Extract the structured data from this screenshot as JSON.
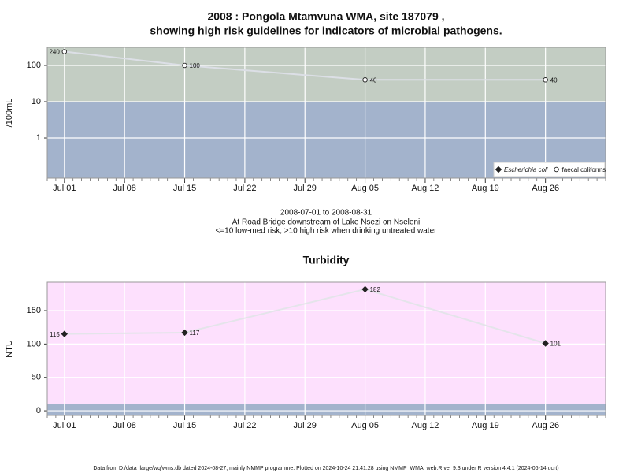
{
  "chart_data": [
    {
      "type": "line",
      "title": [
        "2008 : Pongola Mtamvuna WMA, site 187079 ,",
        "showing high risk guidelines for indicators of microbial pathogens."
      ],
      "y_label": "/100mL",
      "log_scale": true,
      "ylim": [
        0.078,
        316
      ],
      "yticks": [
        1,
        10,
        100
      ],
      "xlim": [
        "2008-06-29",
        "2008-09-02"
      ],
      "xticks": [
        {
          "value": "2008-07-01",
          "label": "Jul 01"
        },
        {
          "value": "2008-07-08",
          "label": "Jul 08"
        },
        {
          "value": "2008-07-15",
          "label": "Jul 15"
        },
        {
          "value": "2008-07-22",
          "label": "Jul 22"
        },
        {
          "value": "2008-07-29",
          "label": "Jul 29"
        },
        {
          "value": "2008-08-05",
          "label": "Aug 05"
        },
        {
          "value": "2008-08-12",
          "label": "Aug 12"
        },
        {
          "value": "2008-08-19",
          "label": "Aug 19"
        },
        {
          "value": "2008-08-26",
          "label": "Aug 26"
        }
      ],
      "x": [
        "2008-07-01",
        "2008-07-15",
        "2008-08-05",
        "2008-08-26"
      ],
      "threshold": 10,
      "color_above": "#c3cdc3",
      "color_below": "#a3b3cc",
      "grid": true,
      "legend": "bottom-right",
      "series": [
        {
          "name": "Escherichia coli",
          "marker": "diamond",
          "color": "#222222",
          "values": [
            null,
            null,
            null,
            null
          ]
        },
        {
          "name": "faecal coliforms",
          "marker": "circle",
          "color": "#dcdfe6",
          "values": [
            240,
            100,
            40,
            40
          ]
        }
      ]
    },
    {
      "type": "line",
      "title": "Turbidity",
      "y_label": "NTU",
      "log_scale": false,
      "ylim": [
        -7,
        192.5
      ],
      "yticks": [
        0,
        50,
        100,
        150
      ],
      "xlim": [
        "2008-06-29",
        "2008-09-02"
      ],
      "xticks": [
        {
          "value": "2008-07-01",
          "label": "Jul 01"
        },
        {
          "value": "2008-07-08",
          "label": "Jul 08"
        },
        {
          "value": "2008-07-15",
          "label": "Jul 15"
        },
        {
          "value": "2008-07-22",
          "label": "Jul 22"
        },
        {
          "value": "2008-07-29",
          "label": "Jul 29"
        },
        {
          "value": "2008-08-05",
          "label": "Aug 05"
        },
        {
          "value": "2008-08-12",
          "label": "Aug 12"
        },
        {
          "value": "2008-08-19",
          "label": "Aug 19"
        },
        {
          "value": "2008-08-26",
          "label": "Aug 26"
        }
      ],
      "x": [
        "2008-07-01",
        "2008-07-15",
        "2008-08-05",
        "2008-08-26"
      ],
      "threshold": 10,
      "color_above": "#fde0fd",
      "color_below": "#a3b3cc",
      "grid": true,
      "series": [
        {
          "marker": "diamond",
          "color": "#e4e4ea",
          "values": [
            115,
            117,
            182,
            101
          ]
        }
      ]
    }
  ],
  "caption": [
    "2008-07-01 to 2008-08-31",
    "At Road Bridge downstream of Lake Nsezi on Nseleni",
    "<=10 low-med risk; >10 high risk when drinking untreated water"
  ],
  "footer": "Data from D:/data_large/wq/wms.db dated 2024-08-27, mainly NMMP programme. Plotted on 2024-10-24 21:41:28 using NMMP_WMA_web.R ver 9.3 under R version 4.4.1 (2024-06-14 ucrt)"
}
